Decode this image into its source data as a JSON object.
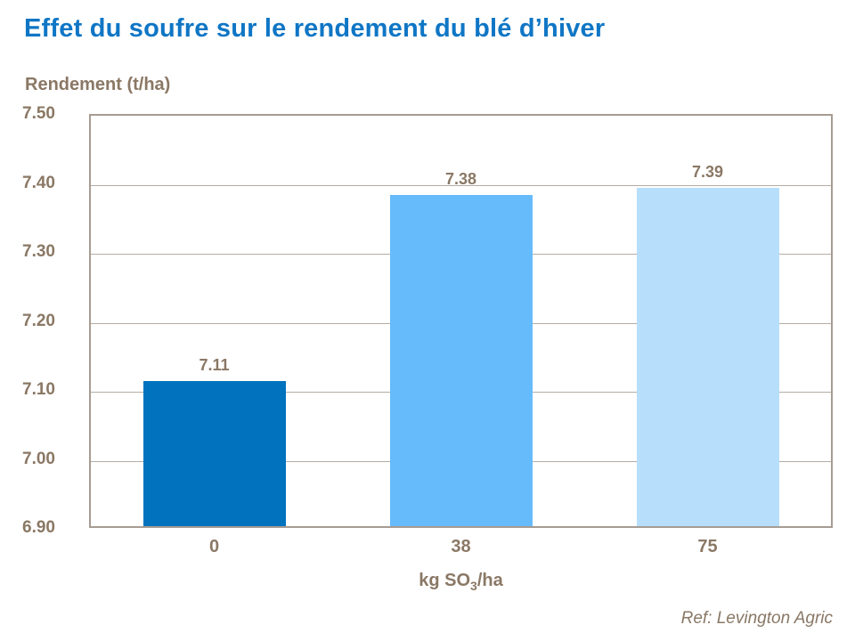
{
  "title": "Effet du soufre sur le rendement du blé d’hiver",
  "y_axis_title": "Rendement (t/ha)",
  "x_axis_label": {
    "prefix": "kg SO",
    "subscript": "3",
    "suffix": "/ha"
  },
  "ref_note": "Ref: Levington Agric",
  "colors": {
    "title_blue": "#0F76C5",
    "text_brown": "#8A7865",
    "plot_border": "#A69C92",
    "gridline": "#B5ADA5",
    "bar_dark_blue": "#0173BE",
    "bar_medium_blue": "#66BBFB",
    "bar_light_blue": "#B7DEFB"
  },
  "chart_data": {
    "type": "bar",
    "title": "Effet du soufre sur le rendement du blé d’hiver",
    "categories": [
      "0",
      "38",
      "75"
    ],
    "values": [
      7.11,
      7.38,
      7.39
    ],
    "value_labels": [
      "7.11",
      "7.38",
      "7.39"
    ],
    "bar_colors": [
      "#0173BE",
      "#66BBFB",
      "#B7DEFB"
    ],
    "xlabel": "kg SO3/ha",
    "ylabel": "Rendement (t/ha)",
    "ylim": [
      6.9,
      7.5
    ],
    "ytick_step": 0.1,
    "yticks": [
      "7.50",
      "7.40",
      "7.30",
      "7.20",
      "7.10",
      "7.00",
      "6.90"
    ],
    "grid": "horizontal",
    "legend": "none"
  }
}
